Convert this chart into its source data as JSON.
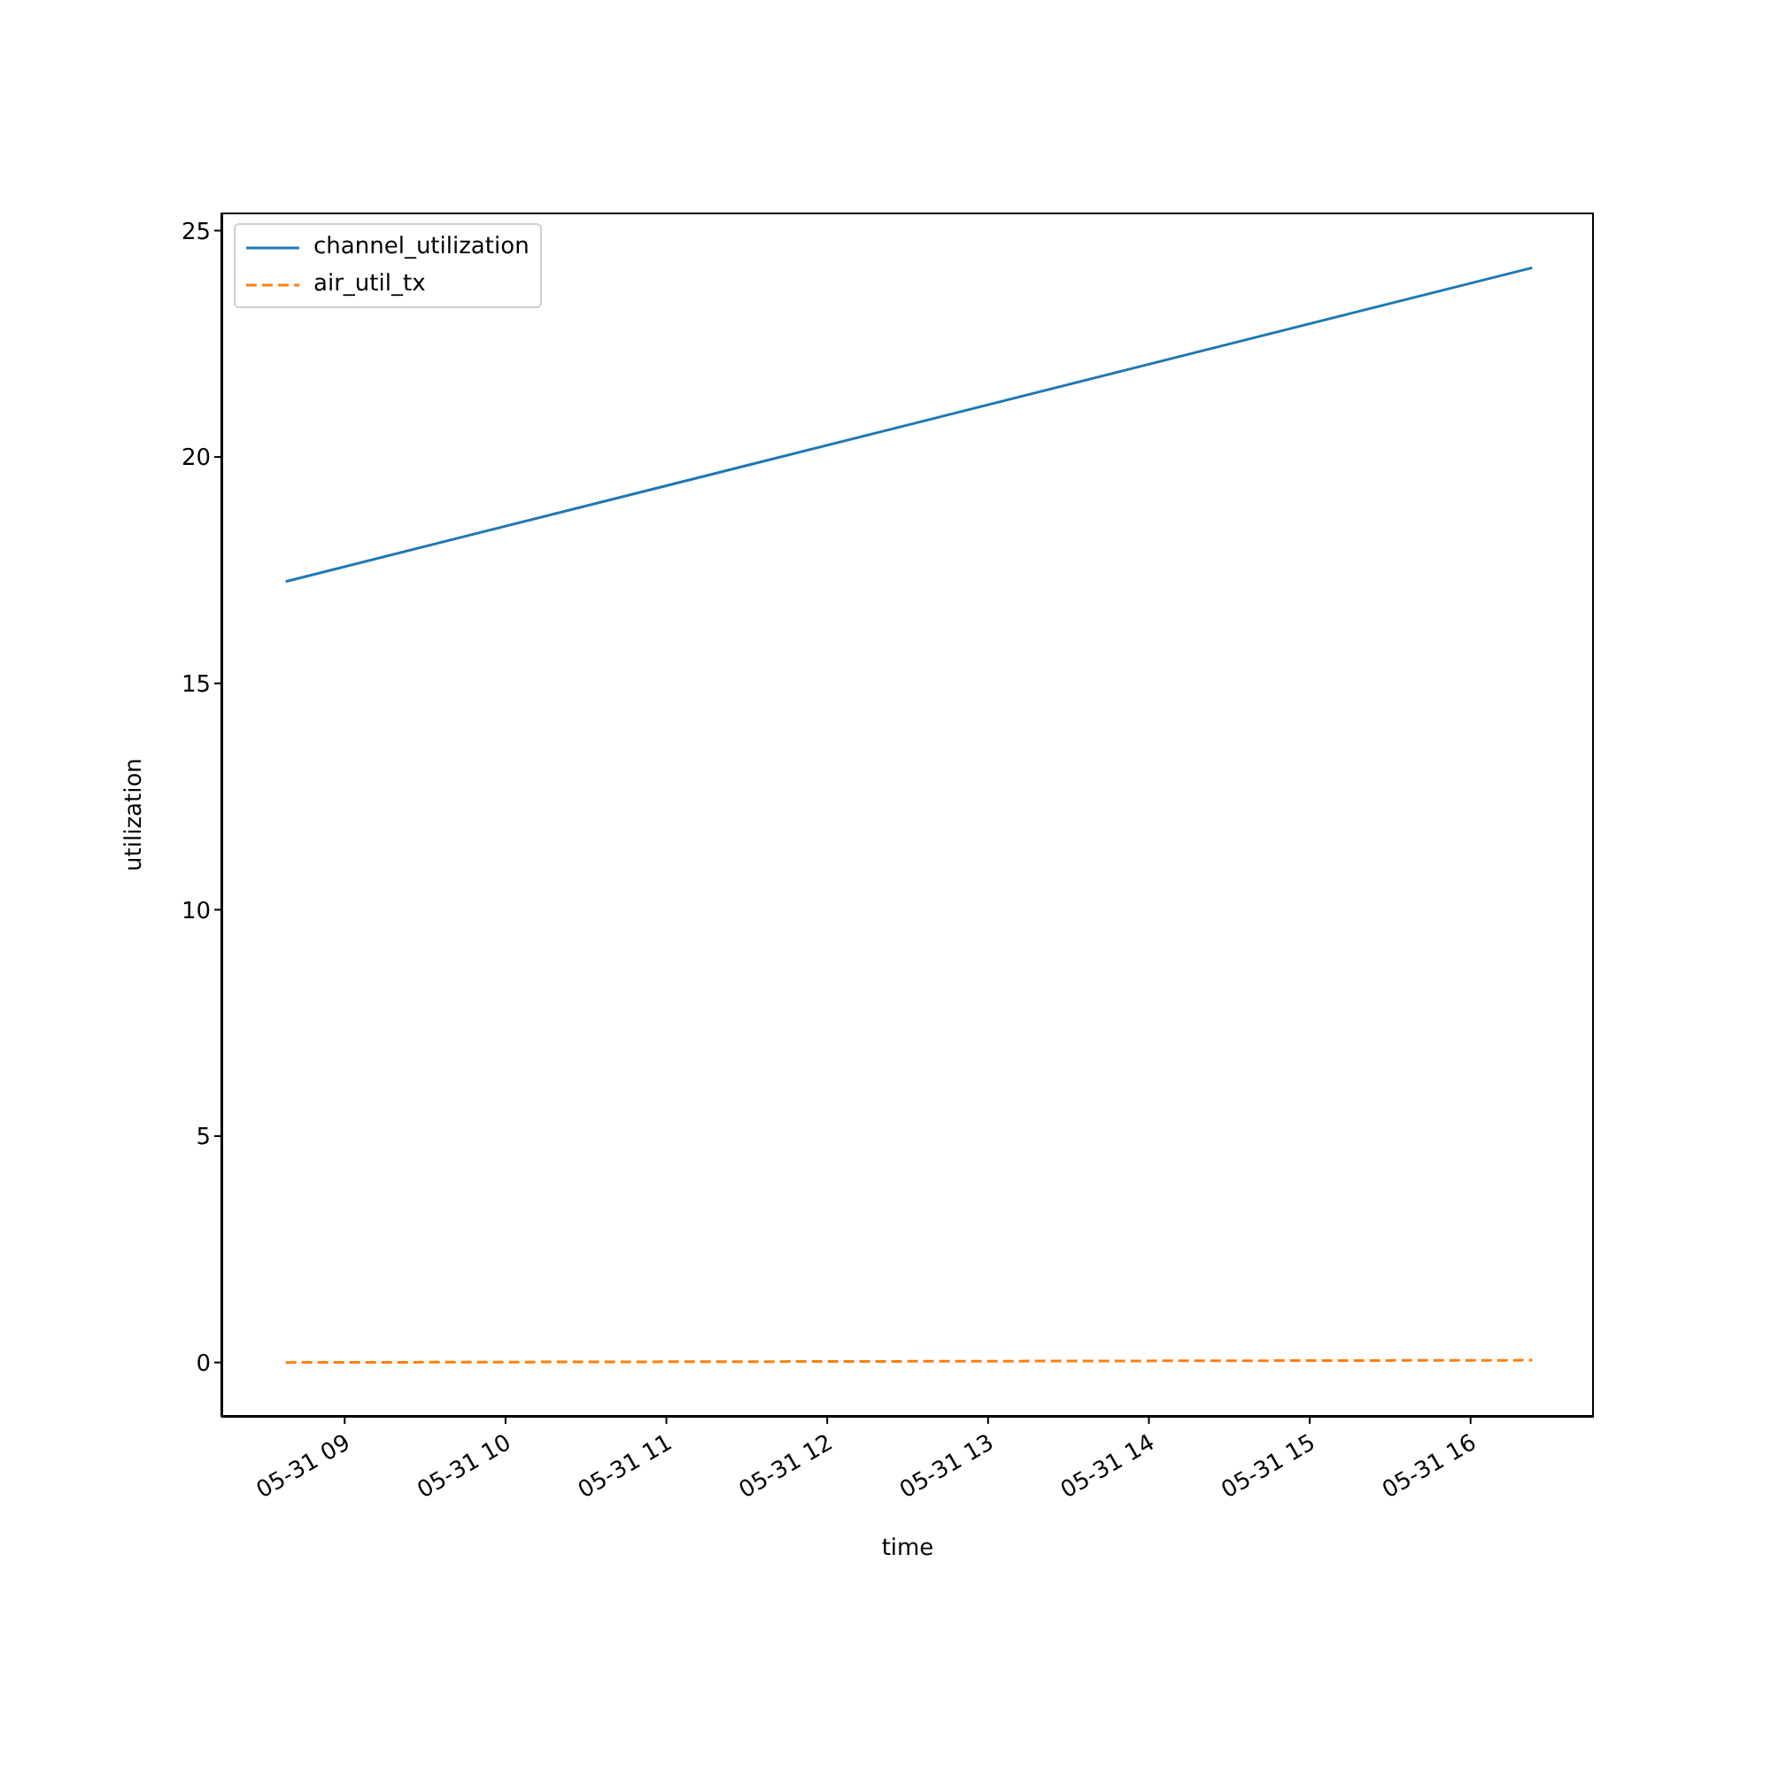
{
  "chart_data": {
    "type": "line",
    "xlabel": "time",
    "ylabel": "utilization",
    "series": [
      {
        "name": "channel_utilization",
        "color": "#1f77b4",
        "line_style": "solid",
        "x": [
          "--05-31T08:38",
          "--05-31T16:23"
        ],
        "values": [
          17.25,
          24.18
        ]
      },
      {
        "name": "air_util_tx",
        "color": "#ff7f0e",
        "line_style": "dashed",
        "x": [
          "--05-31T08:38",
          "--05-31T16:23"
        ],
        "values": [
          0.0,
          0.05
        ]
      }
    ],
    "xlim": [
      "--05-31T08:14",
      "--05-31T16:46"
    ],
    "xticks": [
      {
        "value": "--05-31T09:00",
        "label": "05-31 09"
      },
      {
        "value": "--05-31T10:00",
        "label": "05-31 10"
      },
      {
        "value": "--05-31T11:00",
        "label": "05-31 11"
      },
      {
        "value": "--05-31T12:00",
        "label": "05-31 12"
      },
      {
        "value": "--05-31T13:00",
        "label": "05-31 13"
      },
      {
        "value": "--05-31T14:00",
        "label": "05-31 14"
      },
      {
        "value": "--05-31T15:00",
        "label": "05-31 15"
      },
      {
        "value": "--05-31T16:00",
        "label": "05-31 16"
      }
    ],
    "ylim": [
      -1.2,
      25.4
    ],
    "yticks": [
      0,
      5,
      10,
      15,
      20,
      25
    ],
    "legend": "top left",
    "grid": false
  }
}
